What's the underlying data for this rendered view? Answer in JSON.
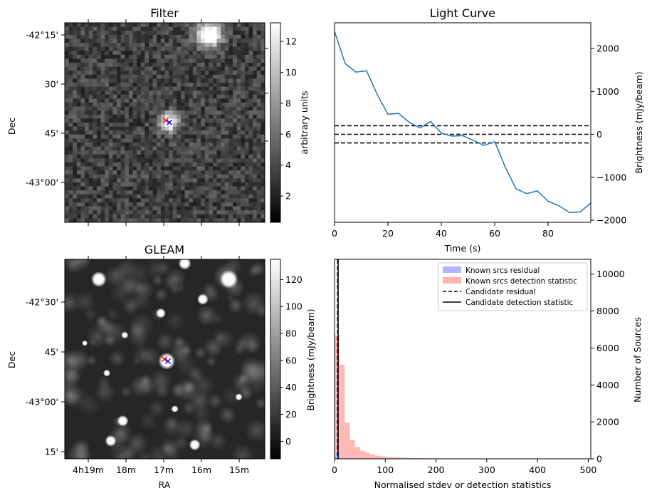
{
  "chart_data": [
    {
      "type": "heatmap",
      "title": "Filter",
      "ylabel": "Dec",
      "xlabel": "",
      "ytick_labels": [
        "-42°15'",
        "30'",
        "45'",
        "-43°00'"
      ],
      "colorbar": {
        "label": "arbitrary units",
        "ticks": [
          2,
          4,
          6,
          8,
          10,
          12
        ],
        "range": [
          0.3,
          13.2
        ]
      },
      "colormap": "gray",
      "markers": [
        {
          "symbol": "x",
          "color": "#ff0000"
        },
        {
          "symbol": "x",
          "color": "#0000ff"
        }
      ]
    },
    {
      "type": "line",
      "title": "Light Curve",
      "xlabel": "Time (s)",
      "ylabel": "Brightness (mJy/beam)",
      "xlim": [
        0,
        96
      ],
      "ylim": [
        -2050,
        2600
      ],
      "xticks": [
        0,
        20,
        40,
        60,
        80
      ],
      "yticks": [
        -2000,
        -1000,
        0,
        1000,
        2000
      ],
      "line_color": "#1f77b4",
      "x": [
        0,
        4,
        8,
        12,
        16,
        20,
        24,
        28,
        32,
        36,
        40,
        44,
        48,
        52,
        56,
        60,
        64,
        68,
        72,
        76,
        80,
        84,
        88,
        92,
        96
      ],
      "y": [
        2400,
        1650,
        1450,
        1480,
        930,
        470,
        490,
        280,
        150,
        300,
        30,
        -40,
        -30,
        -140,
        -260,
        -170,
        -770,
        -1270,
        -1380,
        -1320,
        -1560,
        -1660,
        -1820,
        -1810,
        -1600
      ],
      "hlines": [
        200,
        0,
        -200
      ]
    },
    {
      "type": "heatmap",
      "title": "GLEAM",
      "xlabel": "RA",
      "ylabel": "Dec",
      "xtick_labels": [
        "4h19m",
        "18m",
        "17m",
        "16m",
        "15m"
      ],
      "ytick_labels": [
        "-42°30'",
        "45'",
        "-43°00'",
        "15'"
      ],
      "colorbar": {
        "label": "Brightness (mJy/beam)",
        "ticks": [
          0,
          20,
          40,
          60,
          80,
          100,
          120
        ],
        "range": [
          -13,
          135
        ]
      },
      "colormap": "gray",
      "markers": [
        {
          "symbol": "x",
          "color": "#ff0000"
        },
        {
          "symbol": "x",
          "color": "#0000ff"
        }
      ]
    },
    {
      "type": "bar",
      "title": "",
      "xlabel": "Normalised stdev or detection statistics",
      "ylabel": "Number of Sources",
      "xlim": [
        0,
        505
      ],
      "ylim": [
        0,
        10800
      ],
      "xticks": [
        0,
        100,
        200,
        300,
        400,
        500
      ],
      "yticks": [
        0,
        2000,
        4000,
        6000,
        8000,
        10000
      ],
      "legend_position": "top-right",
      "series": [
        {
          "name": "Known srcs residual",
          "color": "#b3b3ff",
          "bin_width": 2,
          "bin_starts": [
            0,
            2,
            4,
            6,
            8,
            10,
            12,
            14
          ],
          "values": [
            150,
            300,
            420,
            340,
            200,
            110,
            50,
            20
          ]
        },
        {
          "name": "Known srcs detection statistic",
          "color": "#ffb3b3",
          "bin_width": 10,
          "bin_starts": [
            0,
            10,
            20,
            30,
            40,
            50,
            60,
            70,
            80,
            90,
            100,
            110,
            120,
            130,
            140,
            150,
            160,
            170,
            180,
            190,
            200,
            220,
            240,
            260,
            280,
            300,
            320,
            340,
            360,
            380,
            400,
            420,
            440,
            460,
            480
          ],
          "values": [
            6700,
            5100,
            1950,
            1030,
            640,
            440,
            330,
            230,
            170,
            130,
            100,
            85,
            70,
            60,
            50,
            45,
            40,
            35,
            30,
            28,
            26,
            22,
            20,
            18,
            15,
            14,
            12,
            11,
            10,
            9,
            8,
            7,
            6,
            5,
            4
          ]
        },
        {
          "name": "Candidate residual",
          "style": "dashed",
          "x": 6
        },
        {
          "name": "Candidate detection statistic",
          "style": "solid",
          "x": 6
        }
      ]
    }
  ]
}
